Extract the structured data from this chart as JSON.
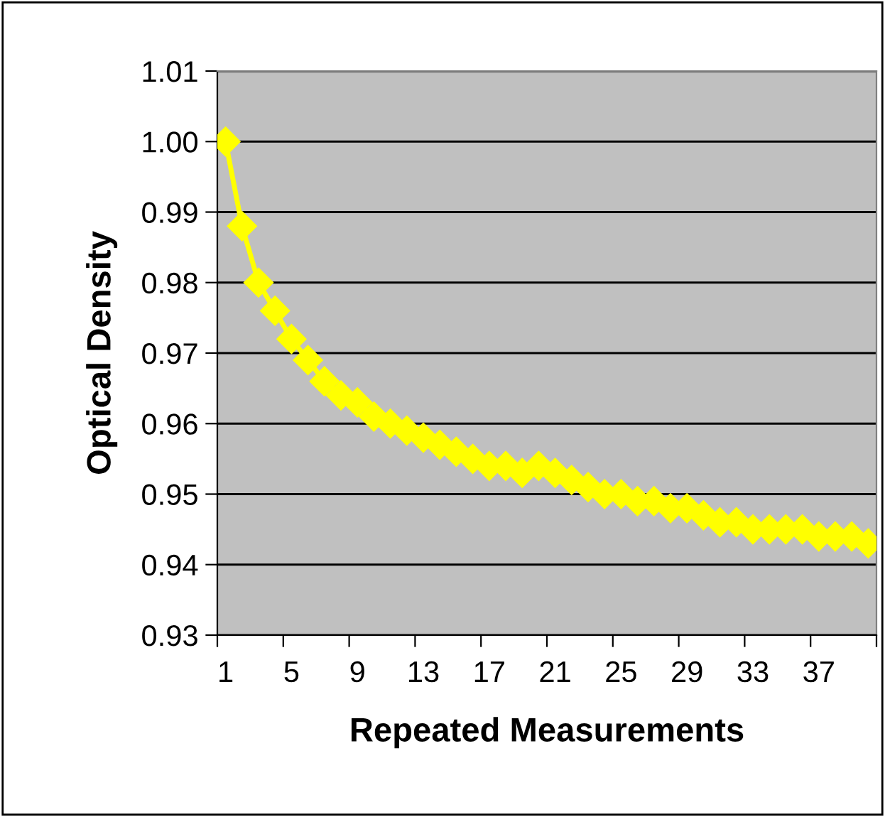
{
  "chart_data": {
    "type": "line",
    "xlabel": "Repeated Measurements",
    "ylabel": "Optical Density",
    "categories": [
      "1",
      null,
      null,
      null,
      "5",
      null,
      null,
      null,
      "9",
      null,
      null,
      null,
      "13",
      null,
      null,
      null,
      "17",
      null,
      null,
      null,
      "21",
      null,
      null,
      null,
      "25",
      null,
      null,
      null,
      "29",
      null,
      null,
      null,
      "33",
      null,
      null,
      null,
      "37",
      null,
      null,
      null
    ],
    "series": [
      {
        "color": "#ffff00",
        "values": [
          1.0,
          0.988,
          0.98,
          0.976,
          0.972,
          0.969,
          0.966,
          0.964,
          0.963,
          0.961,
          0.96,
          0.959,
          0.958,
          0.957,
          0.956,
          0.955,
          0.954,
          0.954,
          0.953,
          0.954,
          0.953,
          0.952,
          0.951,
          0.95,
          0.95,
          0.949,
          0.949,
          0.948,
          0.948,
          0.947,
          0.946,
          0.946,
          0.945,
          0.945,
          0.945,
          0.945,
          0.944,
          0.944,
          0.944,
          0.943
        ]
      }
    ],
    "ylim": [
      0.93,
      1.01
    ],
    "yticks": [
      0.93,
      0.94,
      0.95,
      0.96,
      0.97,
      0.98,
      0.99,
      {
        "value": 1.0,
        "label": "1.00"
      },
      1.01
    ],
    "grid": "y",
    "marker": "diamond",
    "line_style": "solid",
    "legend": false
  }
}
